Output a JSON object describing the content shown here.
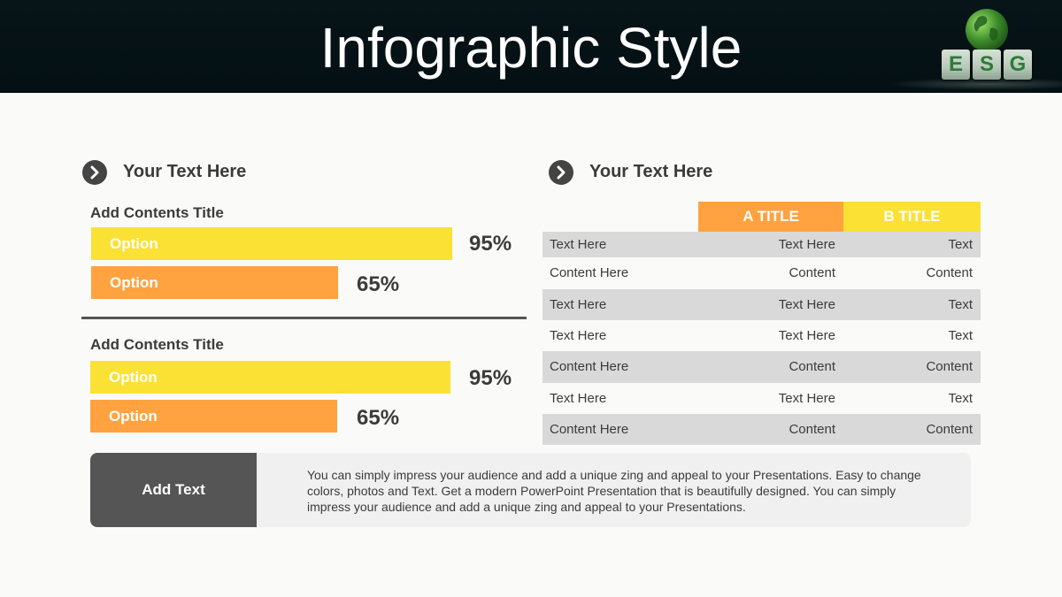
{
  "header": {
    "title": "Infographic Style",
    "logo_letters": [
      "E",
      "S",
      "G"
    ]
  },
  "left": {
    "heading": "Your Text  Here",
    "groups": [
      {
        "title": "Add Contents Title",
        "bars": [
          {
            "label": "Option",
            "percent_text": "95%",
            "value": 95,
            "color": "#fbe134"
          },
          {
            "label": "Option",
            "percent_text": "65%",
            "value": 65,
            "color": "#ffa23f"
          }
        ]
      },
      {
        "title": "Add Contents Title",
        "bars": [
          {
            "label": "Option",
            "percent_text": "95%",
            "value": 95,
            "color": "#fbe134"
          },
          {
            "label": "Option",
            "percent_text": "65%",
            "value": 65,
            "color": "#ffa23f"
          }
        ]
      }
    ]
  },
  "right": {
    "heading": "Your Text  Here",
    "table": {
      "headers": [
        "A TITLE",
        "B TITLE"
      ],
      "header_colors": [
        "#ffa23f",
        "#fbe134"
      ],
      "rows": [
        [
          "Text Here",
          "Text Here",
          "Text"
        ],
        [
          "Content Here",
          "Content",
          "Content"
        ],
        [
          "Text Here",
          "Text Here",
          "Text"
        ],
        [
          "Text Here",
          "Text Here",
          "Text"
        ],
        [
          "Content Here",
          "Content",
          "Content"
        ],
        [
          "Text Here",
          "Text Here",
          "Text"
        ],
        [
          "Content Here",
          "Content",
          "Content"
        ]
      ]
    }
  },
  "bottom": {
    "label": "Add Text",
    "body": "You can simply impress your audience and add a unique zing and appeal to your Presentations. Easy to change colors, photos and Text.  Get a modern PowerPoint  Presentation that is beautifully designed. You can simply impress your audience and add a unique zing and appeal to your Presentations."
  },
  "colors": {
    "yellow": "#fbe134",
    "orange": "#ffa23f",
    "dark": "#555555",
    "header_bg": "#071418"
  }
}
